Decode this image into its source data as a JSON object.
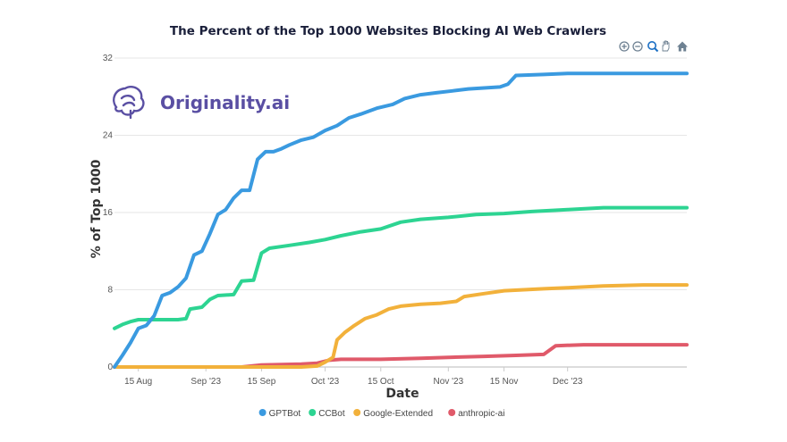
{
  "chart_data": {
    "type": "line",
    "title": "The Percent of the Top 1000 Websites Blocking AI Web Crawlers",
    "xlabel": "Date",
    "ylabel": "% of Top 1000",
    "x_range": [
      "2023-08-09",
      "2023-12-31"
    ],
    "ylim": [
      0,
      32
    ],
    "y_ticks": [
      0,
      8,
      16,
      24,
      32
    ],
    "x_ticks": [
      {
        "date": "2023-08-15",
        "label": "15 Aug"
      },
      {
        "date": "2023-09-01",
        "label": "Sep '23"
      },
      {
        "date": "2023-09-15",
        "label": "15 Sep"
      },
      {
        "date": "2023-10-01",
        "label": "Oct '23"
      },
      {
        "date": "2023-10-15",
        "label": "15 Oct"
      },
      {
        "date": "2023-11-01",
        "label": "Nov '23"
      },
      {
        "date": "2023-11-15",
        "label": "15 Nov"
      },
      {
        "date": "2023-12-01",
        "label": "Dec '23"
      }
    ],
    "grid": "horizontal",
    "legend_position": "bottom-center",
    "series": [
      {
        "name": "GPTBot",
        "color": "#3a9ae0",
        "points": [
          [
            "2023-08-09",
            0
          ],
          [
            "2023-08-11",
            1.2
          ],
          [
            "2023-08-13",
            2.5
          ],
          [
            "2023-08-15",
            4.0
          ],
          [
            "2023-08-17",
            4.3
          ],
          [
            "2023-08-19",
            5.3
          ],
          [
            "2023-08-21",
            7.4
          ],
          [
            "2023-08-23",
            7.7
          ],
          [
            "2023-08-25",
            8.3
          ],
          [
            "2023-08-27",
            9.2
          ],
          [
            "2023-08-29",
            11.6
          ],
          [
            "2023-08-31",
            12.0
          ],
          [
            "2023-09-02",
            13.8
          ],
          [
            "2023-09-04",
            15.8
          ],
          [
            "2023-09-06",
            16.3
          ],
          [
            "2023-09-08",
            17.5
          ],
          [
            "2023-09-10",
            18.3
          ],
          [
            "2023-09-12",
            18.3
          ],
          [
            "2023-09-14",
            21.5
          ],
          [
            "2023-09-16",
            22.3
          ],
          [
            "2023-09-18",
            22.3
          ],
          [
            "2023-09-20",
            22.6
          ],
          [
            "2023-09-22",
            23.0
          ],
          [
            "2023-09-25",
            23.5
          ],
          [
            "2023-09-28",
            23.8
          ],
          [
            "2023-10-01",
            24.5
          ],
          [
            "2023-10-04",
            25.0
          ],
          [
            "2023-10-07",
            25.8
          ],
          [
            "2023-10-10",
            26.2
          ],
          [
            "2023-10-14",
            26.8
          ],
          [
            "2023-10-18",
            27.2
          ],
          [
            "2023-10-21",
            27.8
          ],
          [
            "2023-10-25",
            28.2
          ],
          [
            "2023-10-29",
            28.4
          ],
          [
            "2023-11-02",
            28.6
          ],
          [
            "2023-11-06",
            28.8
          ],
          [
            "2023-11-10",
            28.9
          ],
          [
            "2023-11-14",
            29.0
          ],
          [
            "2023-11-16",
            29.3
          ],
          [
            "2023-11-18",
            30.2
          ],
          [
            "2023-11-25",
            30.3
          ],
          [
            "2023-12-01",
            30.4
          ],
          [
            "2023-12-10",
            30.4
          ],
          [
            "2023-12-20",
            30.4
          ],
          [
            "2023-12-31",
            30.4
          ]
        ]
      },
      {
        "name": "CCBot",
        "color": "#2dd492",
        "points": [
          [
            "2023-08-09",
            4.0
          ],
          [
            "2023-08-11",
            4.4
          ],
          [
            "2023-08-13",
            4.7
          ],
          [
            "2023-08-15",
            4.9
          ],
          [
            "2023-08-20",
            4.9
          ],
          [
            "2023-08-25",
            4.9
          ],
          [
            "2023-08-27",
            5.0
          ],
          [
            "2023-08-28",
            6.0
          ],
          [
            "2023-08-31",
            6.2
          ],
          [
            "2023-09-02",
            7.0
          ],
          [
            "2023-09-04",
            7.4
          ],
          [
            "2023-09-08",
            7.5
          ],
          [
            "2023-09-10",
            8.9
          ],
          [
            "2023-09-13",
            9.0
          ],
          [
            "2023-09-15",
            11.8
          ],
          [
            "2023-09-17",
            12.3
          ],
          [
            "2023-09-22",
            12.6
          ],
          [
            "2023-09-27",
            12.9
          ],
          [
            "2023-10-01",
            13.2
          ],
          [
            "2023-10-05",
            13.6
          ],
          [
            "2023-10-10",
            14.0
          ],
          [
            "2023-10-15",
            14.3
          ],
          [
            "2023-10-20",
            15.0
          ],
          [
            "2023-10-25",
            15.3
          ],
          [
            "2023-11-01",
            15.5
          ],
          [
            "2023-11-08",
            15.8
          ],
          [
            "2023-11-15",
            15.9
          ],
          [
            "2023-11-22",
            16.1
          ],
          [
            "2023-12-01",
            16.3
          ],
          [
            "2023-12-10",
            16.5
          ],
          [
            "2023-12-20",
            16.5
          ],
          [
            "2023-12-31",
            16.5
          ]
        ]
      },
      {
        "name": "Google-Extended",
        "color": "#f2b13b",
        "points": [
          [
            "2023-08-09",
            0
          ],
          [
            "2023-09-25",
            0
          ],
          [
            "2023-09-29",
            0.1
          ],
          [
            "2023-10-01",
            0.5
          ],
          [
            "2023-10-03",
            1.0
          ],
          [
            "2023-10-04",
            2.8
          ],
          [
            "2023-10-06",
            3.6
          ],
          [
            "2023-10-08",
            4.2
          ],
          [
            "2023-10-11",
            5.0
          ],
          [
            "2023-10-14",
            5.4
          ],
          [
            "2023-10-17",
            6.0
          ],
          [
            "2023-10-20",
            6.3
          ],
          [
            "2023-10-25",
            6.5
          ],
          [
            "2023-10-30",
            6.6
          ],
          [
            "2023-11-03",
            6.8
          ],
          [
            "2023-11-05",
            7.3
          ],
          [
            "2023-11-10",
            7.6
          ],
          [
            "2023-11-15",
            7.9
          ],
          [
            "2023-11-20",
            8.0
          ],
          [
            "2023-11-25",
            8.1
          ],
          [
            "2023-12-01",
            8.2
          ],
          [
            "2023-12-10",
            8.4
          ],
          [
            "2023-12-20",
            8.5
          ],
          [
            "2023-12-31",
            8.5
          ]
        ]
      },
      {
        "name": "anthropic-ai",
        "color": "#e05a6a",
        "points": [
          [
            "2023-08-09",
            0
          ],
          [
            "2023-09-10",
            0
          ],
          [
            "2023-09-15",
            0.2
          ],
          [
            "2023-09-25",
            0.3
          ],
          [
            "2023-09-29",
            0.4
          ],
          [
            "2023-10-02",
            0.7
          ],
          [
            "2023-10-05",
            0.8
          ],
          [
            "2023-10-15",
            0.8
          ],
          [
            "2023-10-25",
            0.9
          ],
          [
            "2023-11-01",
            1.0
          ],
          [
            "2023-11-10",
            1.1
          ],
          [
            "2023-11-18",
            1.2
          ],
          [
            "2023-11-25",
            1.3
          ],
          [
            "2023-11-28",
            2.2
          ],
          [
            "2023-12-05",
            2.3
          ],
          [
            "2023-12-20",
            2.3
          ],
          [
            "2023-12-31",
            2.3
          ]
        ]
      }
    ]
  },
  "logo": {
    "text": "Originality.ai",
    "color": "#5a4fa3"
  },
  "toolbar": [
    {
      "name": "zoom-in-icon",
      "glyph": "⊕"
    },
    {
      "name": "zoom-out-icon",
      "glyph": "⊖"
    },
    {
      "name": "selection-zoom-icon",
      "glyph": "🔍"
    },
    {
      "name": "pan-icon",
      "glyph": "✋"
    },
    {
      "name": "reset-home-icon",
      "glyph": "⌂"
    }
  ]
}
